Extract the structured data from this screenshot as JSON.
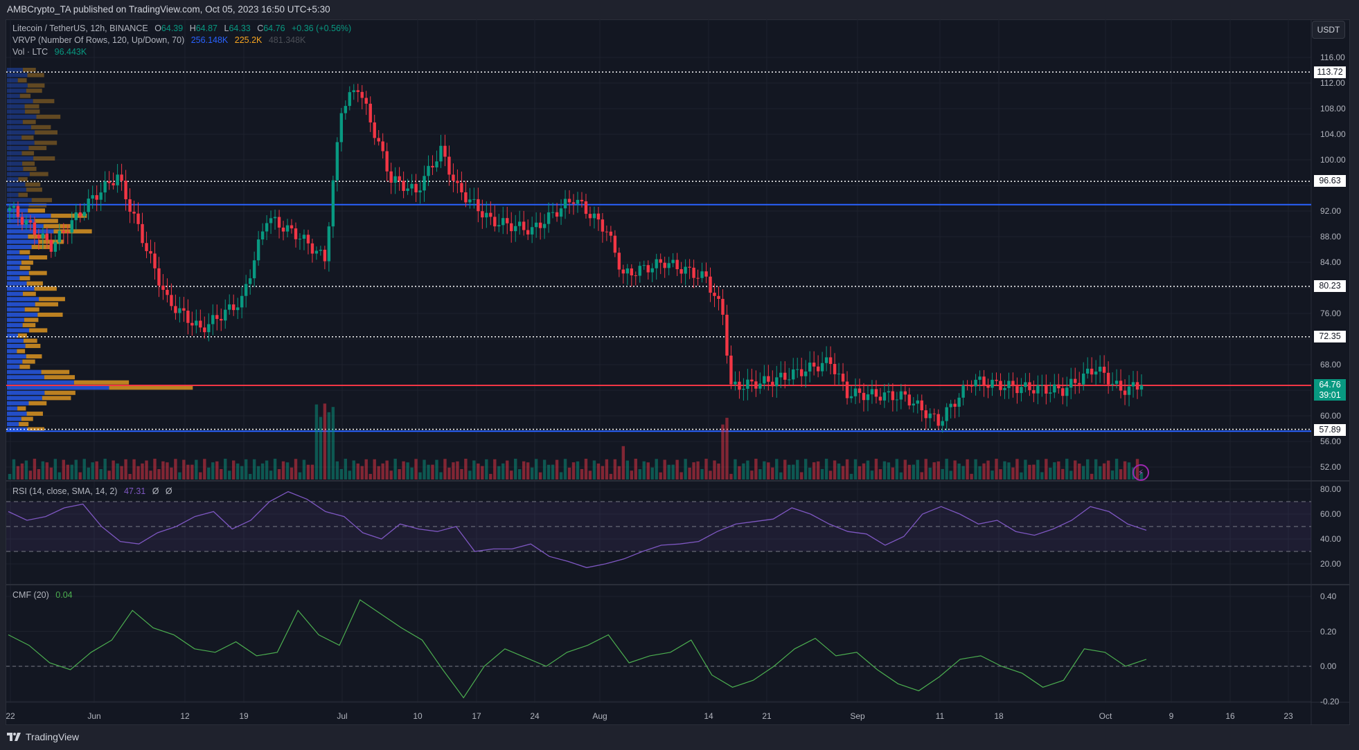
{
  "header": {
    "published": "AMBCrypto_TA published on TradingView.com, Oct 05, 2023 16:50 UTC+5:30"
  },
  "legend": {
    "symbol": "Litecoin / TetherUS, 12h, BINANCE",
    "o_label": "O",
    "o": "64.39",
    "h_label": "H",
    "h": "64.87",
    "l_label": "L",
    "l": "64.33",
    "c_label": "C",
    "c": "64.76",
    "change": "+0.36 (+0.56%)",
    "vrvp_label": "VRVP (Number Of Rows, 120, Up/Down, 70)",
    "vrvp_up": "256.148K",
    "vrvp_down": "225.2K",
    "vrvp_total": "481.348K",
    "vol_label": "Vol · LTC",
    "vol_value": "96.443K",
    "rsi_label": "RSI (14, close, SMA, 14, 2)",
    "rsi_value": "47.31",
    "rsi_extra1": "Ø",
    "rsi_extra2": "Ø",
    "cmf_label": "CMF (20)",
    "cmf_value": "0.04"
  },
  "axis": {
    "currency": "USDT",
    "price_ticks": [
      "116.00",
      "112.00",
      "108.00",
      "104.00",
      "100.00",
      "96.00",
      "92.00",
      "88.00",
      "84.00",
      "80.00",
      "76.00",
      "72.00",
      "68.00",
      "64.00",
      "60.00",
      "56.00",
      "52.00"
    ],
    "rsi_ticks": [
      "80.00",
      "60.00",
      "40.00",
      "20.00"
    ],
    "cmf_ticks": [
      "0.40",
      "0.20",
      "0.00",
      "-0.20"
    ],
    "time_ticks": [
      "22",
      "Jun",
      "12",
      "19",
      "Jul",
      "10",
      "17",
      "24",
      "Aug",
      "14",
      "21",
      "Sep",
      "11",
      "18",
      "Oct",
      "9",
      "16",
      "23"
    ]
  },
  "price_tags": {
    "level_1": "113.72",
    "level_2": "96.63",
    "level_3": "80.23",
    "level_4": "72.35",
    "current_price": "64.76",
    "countdown": "39:01",
    "level_5": "57.89"
  },
  "footer": {
    "brand": "TradingView"
  },
  "colors": {
    "background": "#131722",
    "up": "#089981",
    "down": "#f23645",
    "vrvp_up": "#2962ff",
    "vrvp_down": "#f7a521",
    "rsi_line": "#7e57c2",
    "cmf_line": "#4caf50",
    "support_blue": "#2962ff",
    "current_red": "#f23645"
  },
  "chart_data": [
    {
      "type": "candlestick",
      "title": "Litecoin / TetherUS, 12h, BINANCE",
      "ylabel": "USDT",
      "ylim": [
        50,
        118
      ],
      "x_range": [
        "May 22, 2023",
        "Oct 05, 2023"
      ],
      "last": {
        "open": 64.39,
        "high": 64.87,
        "low": 64.33,
        "close": 64.76,
        "change": 0.36,
        "change_pct": 0.56
      },
      "horizontal_levels": [
        {
          "value": 113.72,
          "style": "dotted",
          "color": "#ffffff"
        },
        {
          "value": 96.63,
          "style": "dotted",
          "color": "#ffffff"
        },
        {
          "value": 93.0,
          "style": "solid",
          "color": "#2962ff"
        },
        {
          "value": 80.23,
          "style": "dotted",
          "color": "#ffffff"
        },
        {
          "value": 72.35,
          "style": "dotted",
          "color": "#ffffff"
        },
        {
          "value": 64.76,
          "style": "solid",
          "color": "#f23645"
        },
        {
          "value": 57.89,
          "style": "dotted",
          "color": "#ffffff"
        },
        {
          "value": 57.6,
          "style": "solid",
          "color": "#2962ff"
        }
      ],
      "approx_close_path": [
        {
          "date": "May 22",
          "close": 92.5
        },
        {
          "date": "May 27",
          "close": 86.5
        },
        {
          "date": "Jun 1",
          "close": 94.0
        },
        {
          "date": "Jun 4",
          "close": 97.5
        },
        {
          "date": "Jun 6",
          "close": 91.0
        },
        {
          "date": "Jun 10",
          "close": 78.0
        },
        {
          "date": "Jun 14",
          "close": 73.5
        },
        {
          "date": "Jun 19",
          "close": 78.0
        },
        {
          "date": "Jun 22",
          "close": 91.0
        },
        {
          "date": "Jun 26",
          "close": 88.0
        },
        {
          "date": "Jun 29",
          "close": 84.5
        },
        {
          "date": "Jul 1",
          "close": 108.0
        },
        {
          "date": "Jul 3",
          "close": 111.5
        },
        {
          "date": "Jul 7",
          "close": 97.0
        },
        {
          "date": "Jul 10",
          "close": 95.0
        },
        {
          "date": "Jul 13",
          "close": 101.5
        },
        {
          "date": "Jul 15",
          "close": 95.5
        },
        {
          "date": "Jul 19",
          "close": 90.5
        },
        {
          "date": "Jul 24",
          "close": 89.0
        },
        {
          "date": "Jul 29",
          "close": 94.0
        },
        {
          "date": "Aug 2",
          "close": 89.0
        },
        {
          "date": "Aug 4",
          "close": 82.0
        },
        {
          "date": "Aug 9",
          "close": 84.0
        },
        {
          "date": "Aug 14",
          "close": 81.5
        },
        {
          "date": "Aug 16",
          "close": 76.0
        },
        {
          "date": "Aug 17",
          "close": 64.5
        },
        {
          "date": "Aug 22",
          "close": 65.5
        },
        {
          "date": "Aug 29",
          "close": 68.5
        },
        {
          "date": "Aug 31",
          "close": 63.5
        },
        {
          "date": "Sep 7",
          "close": 63.0
        },
        {
          "date": "Sep 11",
          "close": 59.0
        },
        {
          "date": "Sep 15",
          "close": 65.5
        },
        {
          "date": "Sep 20",
          "close": 64.5
        },
        {
          "date": "Sep 26",
          "close": 64.0
        },
        {
          "date": "Sep 30",
          "close": 67.5
        },
        {
          "date": "Oct 3",
          "close": 64.0
        },
        {
          "date": "Oct 5",
          "close": 64.76
        }
      ]
    },
    {
      "type": "bar",
      "title": "Vol · LTC",
      "last_value": "96.443K",
      "note": "volume bars at bottom of price pane; spikes around Jul 1 and Aug 17"
    },
    {
      "type": "line",
      "title": "RSI (14, close, SMA, 14, 2)",
      "last_value": 47.31,
      "ylim": [
        10,
        85
      ],
      "bands": [
        70,
        50,
        30
      ],
      "approx_values": [
        62,
        55,
        58,
        65,
        68,
        50,
        38,
        36,
        45,
        50,
        58,
        62,
        48,
        55,
        70,
        78,
        72,
        62,
        58,
        45,
        40,
        52,
        48,
        46,
        50,
        30,
        32,
        32,
        36,
        26,
        22,
        17,
        20,
        24,
        30,
        35,
        36,
        38,
        46,
        52,
        54,
        56,
        65,
        60,
        52,
        46,
        44,
        35,
        42,
        60,
        66,
        60,
        52,
        55,
        46,
        43,
        48,
        55,
        66,
        62,
        52,
        47
      ]
    },
    {
      "type": "line",
      "title": "CMF (20)",
      "last_value": 0.04,
      "ylim": [
        -0.25,
        0.45
      ],
      "reference_line": 0.0,
      "approx_values": [
        0.18,
        0.12,
        0.02,
        -0.02,
        0.08,
        0.15,
        0.32,
        0.22,
        0.18,
        0.1,
        0.08,
        0.14,
        0.06,
        0.08,
        0.32,
        0.18,
        0.12,
        0.38,
        0.3,
        0.22,
        0.15,
        -0.02,
        -0.18,
        0.0,
        0.1,
        0.05,
        0.0,
        0.08,
        0.12,
        0.18,
        0.02,
        0.06,
        0.08,
        0.15,
        -0.05,
        -0.12,
        -0.08,
        0.0,
        0.1,
        0.16,
        0.06,
        0.08,
        -0.02,
        -0.1,
        -0.14,
        -0.06,
        0.04,
        0.06,
        0.0,
        -0.04,
        -0.12,
        -0.08,
        0.1,
        0.08,
        0.0,
        0.04
      ]
    }
  ]
}
